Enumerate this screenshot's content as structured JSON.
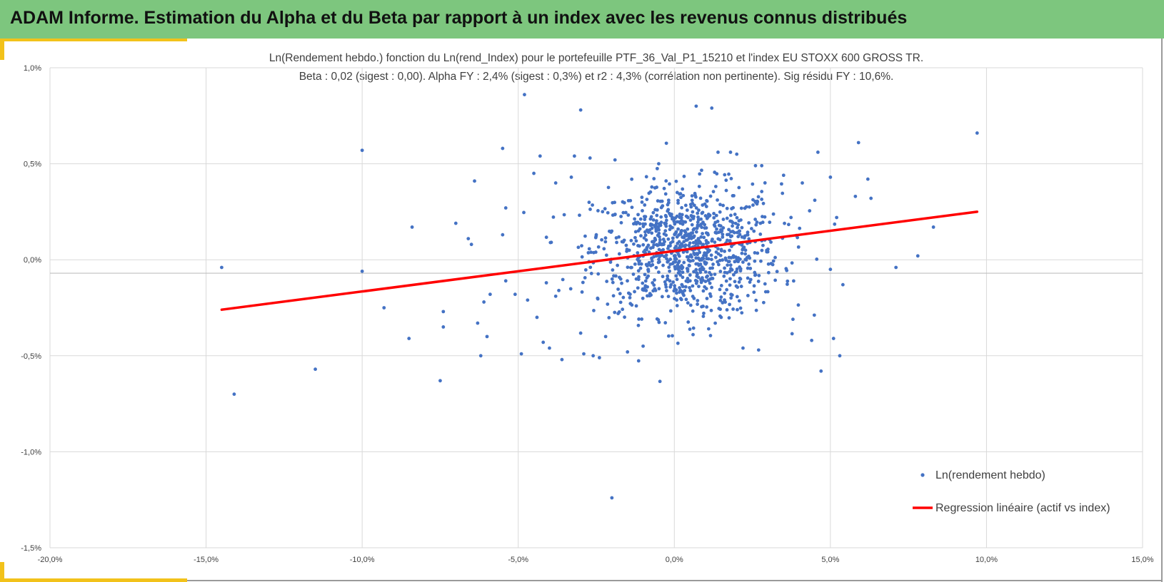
{
  "banner": {
    "title": "ADAM Informe. Estimation du Alpha et du Beta par rapport à un index avec les revenus connus distribués",
    "color": "#7dc67e",
    "accent_color": "#f2c21a"
  },
  "chart_data": {
    "type": "scatter",
    "title": "Ln(Rendement hebdo.) fonction du Ln(rend_Index) pour le portefeuille PTF_36_Val_P1_15210 et l'index EU STOXX 600 GROSS TR.",
    "subtitle": "Beta : 0,02 (sigest : 0,00).  Alpha FY : 2,4% (sigest : 0,3%) et r2 : 4,3% (corrélation non pertinente). Sig résidu FY : 10,6%.",
    "xlabel": "",
    "ylabel": "",
    "xlim": [
      -0.2,
      0.15
    ],
    "ylim": [
      -0.015,
      0.01
    ],
    "x_ticks": [
      -0.2,
      -0.15,
      -0.1,
      -0.05,
      0.0,
      0.05,
      0.1,
      0.15
    ],
    "x_tick_labels": [
      "-20,0%",
      "-15,0%",
      "-10,0%",
      "-5,0%",
      "0,0%",
      "5,0%",
      "10,0%",
      "15,0%"
    ],
    "y_ticks": [
      0.01,
      0.005,
      0.0,
      -0.005,
      -0.01,
      -0.015
    ],
    "y_tick_labels": [
      "1,0%",
      "0,5%",
      "0,0%",
      "-0,5%",
      "-1,0%",
      "-1,5%"
    ],
    "x_axis_crossing_y": -0.0007,
    "grid": true,
    "legend_position": "bottom-right",
    "series": [
      {
        "name": "Ln(rendement hebdo)",
        "type": "scatter",
        "color": "#4472c4",
        "x": [
          -0.145,
          -0.141,
          -0.115,
          -0.1,
          -0.1,
          -0.093,
          -0.085,
          -0.084,
          -0.075,
          -0.074,
          -0.074,
          -0.07,
          -0.066,
          -0.065,
          -0.064,
          -0.063,
          -0.062,
          -0.061,
          -0.06,
          -0.059,
          -0.055,
          -0.055,
          -0.054,
          -0.054,
          -0.051,
          -0.049,
          -0.048,
          -0.047,
          -0.045,
          -0.044,
          -0.043,
          -0.042,
          -0.041,
          -0.04,
          -0.038,
          -0.038,
          -0.037,
          -0.036,
          -0.033,
          -0.032,
          -0.03,
          -0.029,
          -0.027,
          -0.026,
          -0.025,
          -0.024,
          -0.022,
          -0.02,
          -0.019,
          -0.018,
          -0.015,
          -0.01,
          -0.006,
          -0.005,
          0.006,
          0.007,
          0.011,
          0.012,
          0.014,
          0.015,
          0.018,
          0.02,
          0.022,
          0.026,
          0.027,
          0.028,
          0.035,
          0.038,
          0.041,
          0.044,
          0.045,
          0.046,
          0.047,
          0.05,
          0.05,
          0.051,
          0.052,
          0.053,
          0.054,
          0.058,
          0.059,
          0.062,
          0.063,
          0.071,
          0.078,
          0.083,
          0.097
        ],
        "y": [
          -0.0004,
          -0.007,
          -0.0057,
          0.0057,
          -0.0006,
          -0.0025,
          -0.0041,
          0.0017,
          -0.0063,
          -0.0027,
          -0.0035,
          0.0019,
          0.0011,
          0.0008,
          0.0041,
          -0.0033,
          -0.005,
          -0.0022,
          -0.004,
          -0.0018,
          0.0013,
          0.0058,
          0.0027,
          -0.0011,
          -0.0018,
          -0.0049,
          0.0086,
          -0.0021,
          0.0045,
          -0.003,
          0.0054,
          -0.0043,
          -0.0012,
          -0.0046,
          0.004,
          -0.0019,
          -0.0016,
          -0.0052,
          0.0043,
          0.0054,
          0.0078,
          -0.0049,
          0.0053,
          -0.005,
          0.0013,
          -0.0051,
          -0.004,
          -0.0124,
          0.0052,
          -0.0028,
          -0.0048,
          -0.0045,
          -0.0016,
          0.005,
          -0.0039,
          0.008,
          -0.0036,
          0.0079,
          0.0056,
          -0.003,
          0.0056,
          0.0055,
          -0.0046,
          0.0049,
          -0.0047,
          0.0049,
          0.0044,
          -0.0031,
          0.004,
          -0.0042,
          0.0031,
          0.0056,
          -0.0058,
          -0.0005,
          0.0043,
          -0.0041,
          0.0022,
          -0.005,
          -0.0013,
          0.0033,
          0.0061,
          0.0042,
          0.0032,
          -0.0004,
          0.0002,
          0.0017,
          0.0066
        ],
        "dense_cluster": {
          "count": 1000,
          "mean_x": 0.004,
          "std_x": 0.015,
          "mean_y": 0.0005,
          "std_y": 0.0017
        }
      },
      {
        "name": "Regression linéaire (actif vs index)",
        "type": "line",
        "color": "#ff0000",
        "x": [
          -0.145,
          0.097
        ],
        "y": [
          -0.0026,
          0.0025
        ]
      }
    ]
  }
}
